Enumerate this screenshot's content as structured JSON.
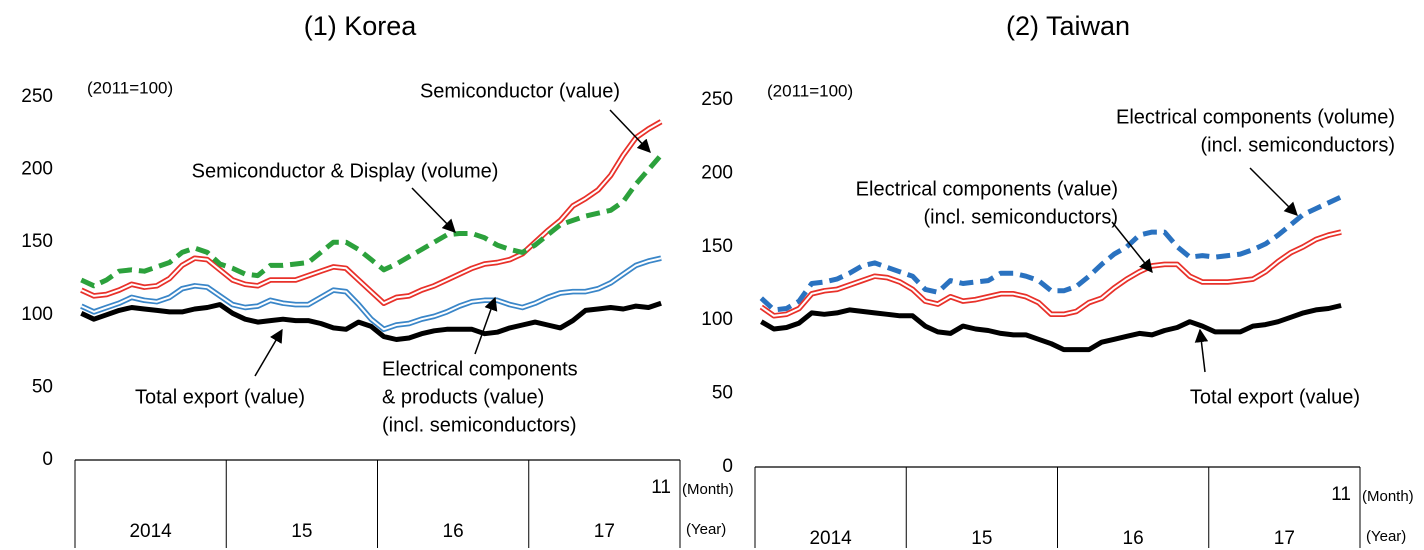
{
  "chart_data": [
    {
      "type": "line",
      "title": "(1) Korea",
      "note": "(2011=100)",
      "categories": [
        null,
        null,
        null,
        null,
        null,
        null,
        null,
        null,
        null,
        null,
        null,
        null,
        null,
        null,
        null,
        null,
        null,
        null,
        null,
        null,
        null,
        null,
        null,
        null,
        null,
        null,
        null,
        null,
        null,
        null,
        null,
        null,
        null,
        null,
        null,
        null,
        null,
        null,
        null,
        null,
        null,
        null,
        null,
        null,
        null,
        null,
        "11"
      ],
      "x_unit": "(Month)",
      "group_labels": [
        "2014",
        "15",
        "16",
        "17"
      ],
      "group_unit": "(Year)",
      "ylim": [
        0,
        250
      ],
      "yticks": [
        0,
        50,
        100,
        150,
        200,
        250
      ],
      "series": [
        {
          "color": "#e8312a",
          "line_style": "double",
          "values": [
            117,
            113,
            114,
            117,
            121,
            119,
            120,
            125,
            134,
            139,
            138,
            131,
            124,
            121,
            120,
            124,
            124,
            124,
            127,
            130,
            133,
            132,
            124,
            116,
            108,
            112,
            113,
            117,
            120,
            124,
            128,
            132,
            135,
            136,
            138,
            142,
            150,
            158,
            165,
            175,
            180,
            186,
            196,
            210,
            222,
            228,
            233
          ]
        },
        {
          "color": "#2ca13c",
          "line_style": "dashed",
          "values": [
            124,
            120,
            124,
            130,
            131,
            130,
            133,
            136,
            143,
            146,
            143,
            135,
            132,
            128,
            127,
            134,
            134,
            135,
            136,
            143,
            150,
            150,
            145,
            138,
            131,
            135,
            140,
            145,
            150,
            155,
            156,
            156,
            153,
            148,
            145,
            143,
            148,
            155,
            162,
            165,
            168,
            170,
            172,
            178,
            190,
            200,
            210
          ]
        },
        {
          "color": "#3a86c8",
          "line_style": "double",
          "values": [
            106,
            102,
            105,
            108,
            112,
            110,
            109,
            112,
            118,
            120,
            119,
            113,
            107,
            105,
            106,
            110,
            108,
            107,
            107,
            112,
            117,
            116,
            107,
            97,
            90,
            93,
            94,
            97,
            99,
            102,
            106,
            109,
            110,
            110,
            107,
            105,
            108,
            112,
            115,
            116,
            116,
            118,
            122,
            128,
            134,
            137,
            139
          ]
        },
        {
          "color": "#000000",
          "line_style": "solid",
          "values": [
            101,
            97,
            100,
            103,
            105,
            104,
            103,
            102,
            102,
            104,
            105,
            107,
            101,
            97,
            95,
            96,
            97,
            96,
            96,
            94,
            91,
            90,
            95,
            92,
            85,
            83,
            84,
            87,
            89,
            90,
            90,
            90,
            87,
            88,
            91,
            93,
            95,
            93,
            91,
            96,
            103,
            104,
            105,
            104,
            106,
            105,
            108
          ]
        }
      ],
      "annotations": [
        {
          "lines": [
            "Semiconductor (value)"
          ]
        },
        {
          "lines": [
            "Semiconductor & Display (volume)"
          ]
        },
        {
          "lines": [
            "Total export (value)"
          ]
        },
        {
          "lines": [
            "Electrical components",
            "& products (value)",
            "(incl. semiconductors)"
          ]
        }
      ]
    },
    {
      "type": "line",
      "title": "(2) Taiwan",
      "note": "(2011=100)",
      "categories": [
        null,
        null,
        null,
        null,
        null,
        null,
        null,
        null,
        null,
        null,
        null,
        null,
        null,
        null,
        null,
        null,
        null,
        null,
        null,
        null,
        null,
        null,
        null,
        null,
        null,
        null,
        null,
        null,
        null,
        null,
        null,
        null,
        null,
        null,
        null,
        null,
        null,
        null,
        null,
        null,
        null,
        null,
        null,
        null,
        null,
        null,
        "11"
      ],
      "x_unit": "(Month)",
      "group_labels": [
        "2014",
        "15",
        "16",
        "17"
      ],
      "group_unit": "(Year)",
      "ylim": [
        0,
        250
      ],
      "yticks": [
        0,
        50,
        100,
        150,
        200,
        250
      ],
      "series": [
        {
          "color": "#2a72c0",
          "line_style": "dashed",
          "values": [
            115,
            107,
            108,
            113,
            125,
            126,
            128,
            132,
            137,
            139,
            136,
            133,
            130,
            121,
            119,
            127,
            125,
            126,
            127,
            132,
            132,
            130,
            127,
            120,
            120,
            123,
            130,
            138,
            145,
            150,
            158,
            160,
            160,
            150,
            143,
            144,
            143,
            144,
            145,
            148,
            152,
            158,
            165,
            172,
            176,
            180,
            184
          ]
        },
        {
          "color": "#e8312a",
          "line_style": "double",
          "values": [
            109,
            103,
            104,
            108,
            118,
            120,
            121,
            124,
            127,
            130,
            129,
            126,
            121,
            113,
            111,
            116,
            113,
            114,
            116,
            118,
            118,
            116,
            112,
            104,
            104,
            106,
            112,
            115,
            122,
            128,
            133,
            137,
            138,
            138,
            130,
            126,
            126,
            126,
            127,
            128,
            133,
            140,
            146,
            150,
            155,
            158,
            160
          ]
        },
        {
          "color": "#000000",
          "line_style": "solid",
          "values": [
            99,
            94,
            95,
            98,
            105,
            104,
            105,
            107,
            106,
            105,
            104,
            103,
            103,
            96,
            92,
            91,
            96,
            94,
            93,
            91,
            90,
            90,
            87,
            84,
            80,
            80,
            80,
            85,
            87,
            89,
            91,
            90,
            93,
            95,
            99,
            96,
            92,
            92,
            92,
            96,
            97,
            99,
            102,
            105,
            107,
            108,
            110
          ]
        }
      ],
      "annotations": [
        {
          "lines": [
            "Electrical components (volume)",
            "(incl. semiconductors)"
          ]
        },
        {
          "lines": [
            "Electrical components (value)",
            "(incl. semiconductors)"
          ]
        },
        {
          "lines": [
            "Total export (value)"
          ]
        }
      ]
    }
  ]
}
